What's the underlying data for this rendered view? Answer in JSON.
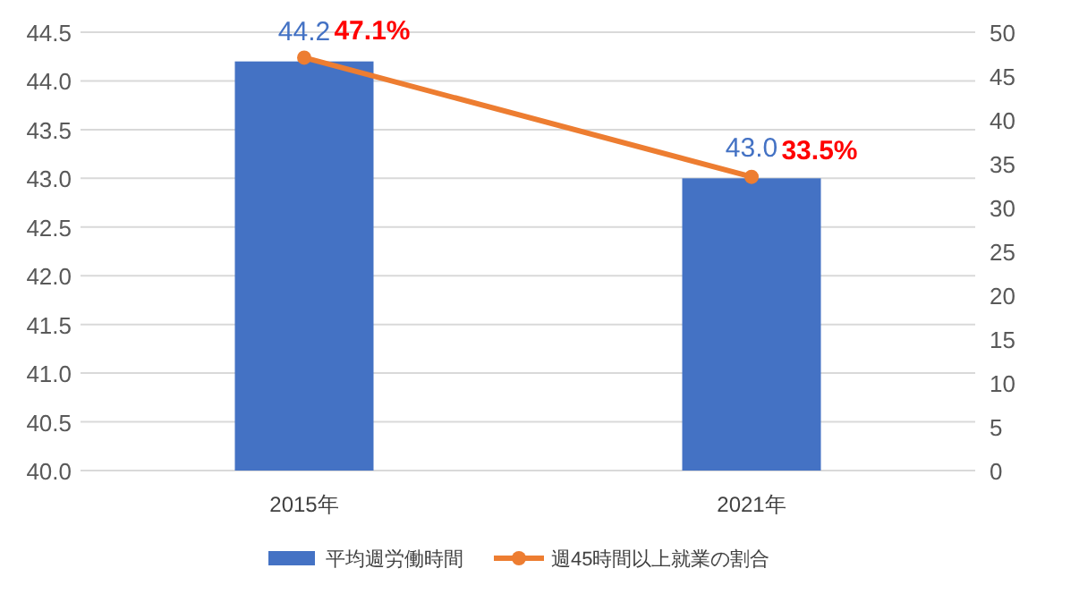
{
  "chart_data": {
    "type": "bar",
    "categories": [
      "2015年",
      "2021年"
    ],
    "series": [
      {
        "name": "平均週労働時間",
        "color": "#4472c4",
        "values": [
          44.2,
          43.0
        ],
        "value_labels": [
          "44.2",
          "43.0"
        ]
      },
      {
        "name": "週45時間以上就業の割合",
        "type": "line",
        "axis": "y2",
        "color": "#ed7d31",
        "values": [
          47.1,
          33.5
        ],
        "value_labels": [
          "47.1%",
          "33.5%"
        ],
        "marker": "circle",
        "line_style": "solid"
      }
    ],
    "ylim": [
      40,
      44.5
    ],
    "yticks": [
      {
        "value": 40,
        "label": "40.0"
      },
      {
        "value": 40.5,
        "label": "40.5"
      },
      {
        "value": 41,
        "label": "41.0"
      },
      {
        "value": 41.5,
        "label": "41.5"
      },
      {
        "value": 42,
        "label": "42.0"
      },
      {
        "value": 42.5,
        "label": "42.5"
      },
      {
        "value": 43,
        "label": "43.0"
      },
      {
        "value": 43.5,
        "label": "43.5"
      },
      {
        "value": 44,
        "label": "44.0"
      },
      {
        "value": 44.5,
        "label": "44.5"
      }
    ],
    "y2lim": [
      0,
      50
    ],
    "y2ticks": [
      0,
      5,
      10,
      15,
      20,
      25,
      30,
      35,
      40,
      45,
      50
    ],
    "grid": "y",
    "legend": "bottom"
  }
}
